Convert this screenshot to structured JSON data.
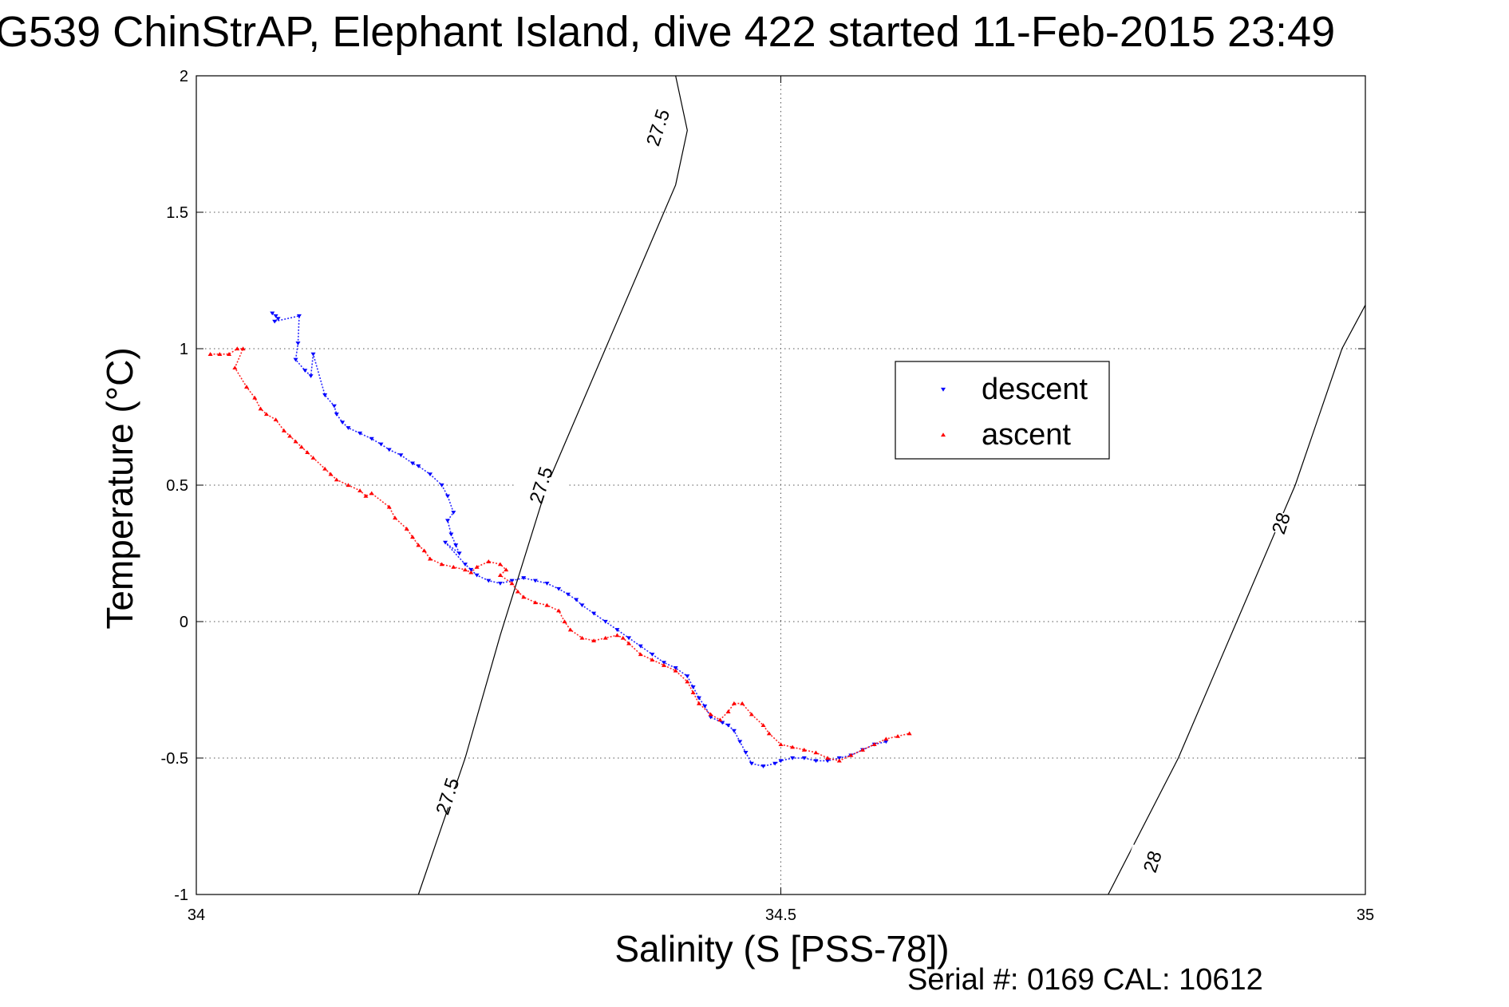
{
  "title": "G539 ChinStrAP, Elephant Island, dive 422 started 11-Feb-2015 23:49",
  "serial": "Serial #: 0169 CAL: 10612",
  "chart_data": {
    "type": "scatter",
    "xlabel": "Salinity (S [PSS-78])",
    "ylabel": "Temperature (°C)",
    "xlim": [
      34,
      35
    ],
    "ylim": [
      -1,
      2
    ],
    "xticks": [
      "34",
      "34.5",
      "35"
    ],
    "yticks": [
      "-1",
      "-0.5",
      "0",
      "0.5",
      "1",
      "1.5",
      "2"
    ],
    "xtick_values": [
      34,
      34.5,
      35
    ],
    "ytick_values": [
      -1,
      -0.5,
      0,
      0.5,
      1,
      1.5,
      2
    ],
    "grid": true,
    "legend_position": "right-center",
    "series": [
      {
        "name": "descent",
        "color": "#0000ff",
        "marker": "triangle-down",
        "points": [
          [
            34.065,
            1.13
          ],
          [
            34.068,
            1.12
          ],
          [
            34.07,
            1.11
          ],
          [
            34.067,
            1.1
          ],
          [
            34.088,
            1.12
          ],
          [
            34.087,
            1.02
          ],
          [
            34.085,
            0.96
          ],
          [
            34.093,
            0.92
          ],
          [
            34.098,
            0.9
          ],
          [
            34.1,
            0.98
          ],
          [
            34.11,
            0.83
          ],
          [
            34.118,
            0.79
          ],
          [
            34.12,
            0.76
          ],
          [
            34.125,
            0.73
          ],
          [
            34.13,
            0.71
          ],
          [
            34.14,
            0.69
          ],
          [
            34.15,
            0.67
          ],
          [
            34.158,
            0.65
          ],
          [
            34.165,
            0.63
          ],
          [
            34.175,
            0.61
          ],
          [
            34.185,
            0.58
          ],
          [
            34.19,
            0.57
          ],
          [
            34.2,
            0.54
          ],
          [
            34.21,
            0.5
          ],
          [
            34.215,
            0.46
          ],
          [
            34.22,
            0.4
          ],
          [
            34.215,
            0.37
          ],
          [
            34.218,
            0.32
          ],
          [
            34.222,
            0.28
          ],
          [
            34.225,
            0.25
          ],
          [
            34.213,
            0.29
          ],
          [
            34.23,
            0.21
          ],
          [
            34.235,
            0.19
          ],
          [
            34.24,
            0.17
          ],
          [
            34.25,
            0.15
          ],
          [
            34.26,
            0.14
          ],
          [
            34.27,
            0.15
          ],
          [
            34.28,
            0.16
          ],
          [
            34.29,
            0.15
          ],
          [
            34.3,
            0.14
          ],
          [
            34.31,
            0.12
          ],
          [
            34.318,
            0.1
          ],
          [
            34.325,
            0.08
          ],
          [
            34.33,
            0.06
          ],
          [
            34.34,
            0.03
          ],
          [
            34.35,
            0.0
          ],
          [
            34.36,
            -0.03
          ],
          [
            34.37,
            -0.06
          ],
          [
            34.38,
            -0.09
          ],
          [
            34.39,
            -0.12
          ],
          [
            34.4,
            -0.15
          ],
          [
            34.41,
            -0.17
          ],
          [
            34.42,
            -0.2
          ],
          [
            34.425,
            -0.24
          ],
          [
            34.43,
            -0.28
          ],
          [
            34.435,
            -0.31
          ],
          [
            34.44,
            -0.35
          ],
          [
            34.45,
            -0.37
          ],
          [
            34.455,
            -0.38
          ],
          [
            34.46,
            -0.4
          ],
          [
            34.465,
            -0.44
          ],
          [
            34.47,
            -0.48
          ],
          [
            34.475,
            -0.52
          ],
          [
            34.485,
            -0.53
          ],
          [
            34.495,
            -0.52
          ],
          [
            34.5,
            -0.51
          ],
          [
            34.51,
            -0.5
          ],
          [
            34.52,
            -0.5
          ],
          [
            34.53,
            -0.51
          ],
          [
            34.54,
            -0.51
          ],
          [
            34.55,
            -0.5
          ],
          [
            34.56,
            -0.49
          ],
          [
            34.57,
            -0.47
          ],
          [
            34.58,
            -0.45
          ],
          [
            34.59,
            -0.44
          ]
        ]
      },
      {
        "name": "ascent",
        "color": "#ff0000",
        "marker": "triangle-up",
        "points": [
          [
            34.012,
            0.98
          ],
          [
            34.02,
            0.98
          ],
          [
            34.028,
            0.98
          ],
          [
            34.035,
            1.0
          ],
          [
            34.04,
            1.0
          ],
          [
            34.033,
            0.93
          ],
          [
            34.043,
            0.86
          ],
          [
            34.05,
            0.82
          ],
          [
            34.055,
            0.78
          ],
          [
            34.06,
            0.76
          ],
          [
            34.068,
            0.74
          ],
          [
            34.075,
            0.7
          ],
          [
            34.08,
            0.68
          ],
          [
            34.085,
            0.66
          ],
          [
            34.09,
            0.64
          ],
          [
            34.095,
            0.62
          ],
          [
            34.1,
            0.6
          ],
          [
            34.11,
            0.56
          ],
          [
            34.115,
            0.54
          ],
          [
            34.12,
            0.52
          ],
          [
            34.13,
            0.5
          ],
          [
            34.14,
            0.48
          ],
          [
            34.145,
            0.46
          ],
          [
            34.15,
            0.47
          ],
          [
            34.165,
            0.42
          ],
          [
            34.17,
            0.38
          ],
          [
            34.18,
            0.34
          ],
          [
            34.185,
            0.31
          ],
          [
            34.19,
            0.28
          ],
          [
            34.195,
            0.26
          ],
          [
            34.2,
            0.23
          ],
          [
            34.21,
            0.21
          ],
          [
            34.22,
            0.2
          ],
          [
            34.23,
            0.19
          ],
          [
            34.235,
            0.18
          ],
          [
            34.24,
            0.2
          ],
          [
            34.25,
            0.22
          ],
          [
            34.26,
            0.21
          ],
          [
            34.265,
            0.19
          ],
          [
            34.26,
            0.17
          ],
          [
            34.27,
            0.14
          ],
          [
            34.275,
            0.11
          ],
          [
            34.28,
            0.09
          ],
          [
            34.29,
            0.07
          ],
          [
            34.3,
            0.06
          ],
          [
            34.31,
            0.04
          ],
          [
            34.315,
            0.0
          ],
          [
            34.32,
            -0.03
          ],
          [
            34.33,
            -0.06
          ],
          [
            34.34,
            -0.07
          ],
          [
            34.35,
            -0.06
          ],
          [
            34.36,
            -0.05
          ],
          [
            34.365,
            -0.06
          ],
          [
            34.37,
            -0.08
          ],
          [
            34.38,
            -0.12
          ],
          [
            34.39,
            -0.14
          ],
          [
            34.4,
            -0.16
          ],
          [
            34.41,
            -0.18
          ],
          [
            34.42,
            -0.22
          ],
          [
            34.425,
            -0.26
          ],
          [
            34.43,
            -0.3
          ],
          [
            34.44,
            -0.34
          ],
          [
            34.448,
            -0.36
          ],
          [
            34.455,
            -0.33
          ],
          [
            34.46,
            -0.3
          ],
          [
            34.467,
            -0.3
          ],
          [
            34.475,
            -0.34
          ],
          [
            34.485,
            -0.38
          ],
          [
            34.49,
            -0.41
          ],
          [
            34.5,
            -0.45
          ],
          [
            34.51,
            -0.46
          ],
          [
            34.52,
            -0.47
          ],
          [
            34.53,
            -0.48
          ],
          [
            34.54,
            -0.5
          ],
          [
            34.55,
            -0.51
          ],
          [
            34.56,
            -0.49
          ],
          [
            34.57,
            -0.47
          ],
          [
            34.58,
            -0.45
          ],
          [
            34.59,
            -0.43
          ],
          [
            34.6,
            -0.42
          ],
          [
            34.61,
            -0.41
          ]
        ]
      }
    ],
    "contours": [
      {
        "label": "27.5",
        "line": [
          [
            34.19,
            -1.0
          ],
          [
            34.23,
            -0.5
          ],
          [
            34.26,
            -0.05
          ],
          [
            34.3,
            0.5
          ],
          [
            34.35,
            1.0
          ],
          [
            34.4,
            1.5
          ],
          [
            34.41,
            1.6
          ],
          [
            34.42,
            1.8
          ],
          [
            34.41,
            2.0
          ]
        ],
        "labels_at": [
          [
            34.215,
            -0.64
          ],
          [
            34.295,
            0.5
          ],
          [
            34.395,
            1.81
          ]
        ]
      },
      {
        "label": "28",
        "line": [
          [
            34.78,
            -1.0
          ],
          [
            34.84,
            -0.5
          ],
          [
            34.89,
            0.0
          ],
          [
            34.94,
            0.5
          ],
          [
            34.98,
            1.0
          ],
          [
            35.0,
            1.16
          ]
        ],
        "labels_at": [
          [
            34.818,
            -0.88
          ],
          [
            34.928,
            0.36
          ]
        ]
      }
    ]
  }
}
